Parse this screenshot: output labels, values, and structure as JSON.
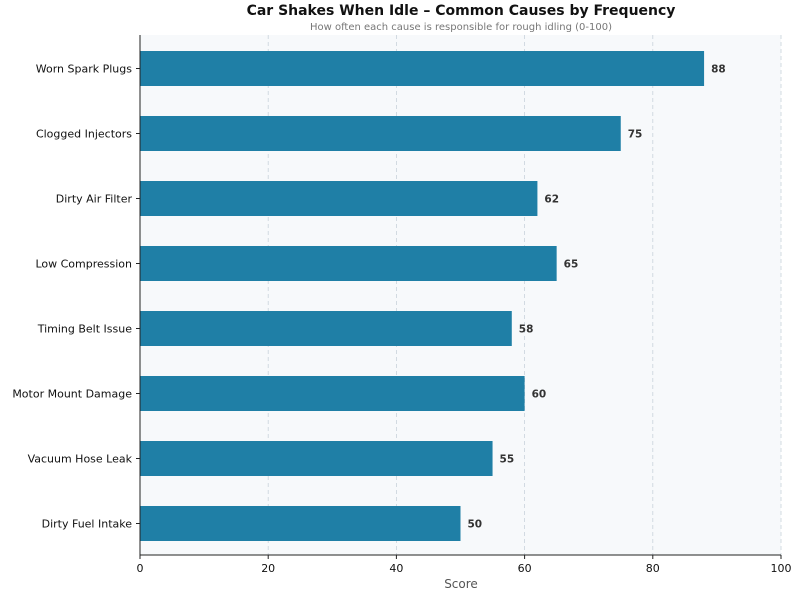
{
  "chart_data": {
    "type": "bar",
    "orientation": "horizontal",
    "title": "Car Shakes When Idle – Common Causes by Frequency",
    "subtitle": "How often each cause is responsible for rough idling (0-100)",
    "xlabel": "Score",
    "ylabel": "",
    "xlim": [
      0,
      100
    ],
    "xticks": [
      0,
      20,
      40,
      60,
      80,
      100
    ],
    "grid": "vertical dashed",
    "categories": [
      "Worn Spark Plugs",
      "Clogged Injectors",
      "Dirty Air Filter",
      "Low Compression",
      "Timing Belt Issue",
      "Motor Mount Damage",
      "Vacuum Hose Leak",
      "Dirty Fuel Intake"
    ],
    "values": [
      88,
      75,
      62,
      65,
      58,
      60,
      55,
      50
    ],
    "bar_color": "#1f7fa6",
    "background_color": "#f7f9fb"
  }
}
